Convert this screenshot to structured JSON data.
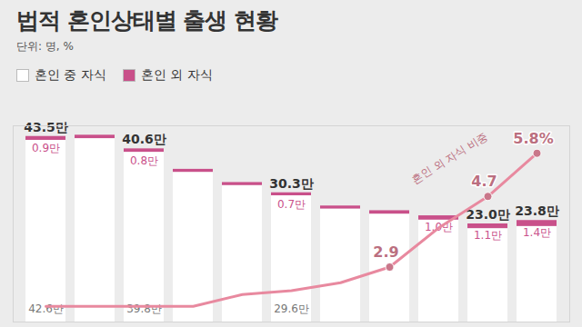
{
  "chart_data": {
    "type": "bar",
    "title": "법적 혼인상태별 출생 현황",
    "subtitle": "단위: 명, %",
    "categories": [
      null,
      null,
      null,
      null,
      null,
      null,
      null,
      null,
      null,
      null,
      null
    ],
    "stacked": true,
    "data_labels": true,
    "tick_labels": false,
    "legend": "top-left",
    "ylim": [
      0,
      46
    ],
    "y2lim": [
      1.5,
      6.5
    ],
    "totals": [
      43.5,
      43.8,
      40.6,
      35.8,
      32.7,
      30.3,
      27.2,
      26.1,
      24.9,
      23.0,
      23.8
    ],
    "total_labels": [
      "43.5만",
      null,
      "40.6만",
      null,
      null,
      "30.3만",
      null,
      null,
      null,
      "23.0만",
      "23.8만"
    ],
    "series": [
      {
        "name": "혼인 중 자식",
        "color": "#ffffff",
        "values": [
          42.6,
          43.0,
          39.8,
          35.1,
          32.0,
          29.6,
          26.5,
          25.3,
          23.9,
          21.9,
          22.4
        ],
        "value_labels": [
          "42.6만",
          null,
          "39.8만",
          null,
          null,
          "29.6만",
          null,
          null,
          null,
          null,
          null
        ]
      },
      {
        "name": "혼인 외 자식",
        "color": "#c9508a",
        "values": [
          0.9,
          0.8,
          0.8,
          0.7,
          0.7,
          0.7,
          0.7,
          0.8,
          1.0,
          1.1,
          1.4
        ],
        "value_labels": [
          "0.9만",
          null,
          "0.8만",
          null,
          null,
          "0.7만",
          null,
          null,
          "1.0만",
          "1.1만",
          "1.4만"
        ]
      },
      {
        "name": "혼인 외 자식 비중",
        "type": "line",
        "axis": "y2",
        "color": "#e8899f",
        "marker": "circle",
        "values": [
          1.9,
          1.9,
          1.9,
          1.9,
          2.2,
          2.3,
          2.5,
          2.9,
          3.9,
          4.7,
          5.8
        ],
        "value_labels": [
          null,
          null,
          null,
          null,
          null,
          null,
          null,
          "2.9",
          null,
          "4.7",
          "5.8%"
        ]
      }
    ]
  }
}
